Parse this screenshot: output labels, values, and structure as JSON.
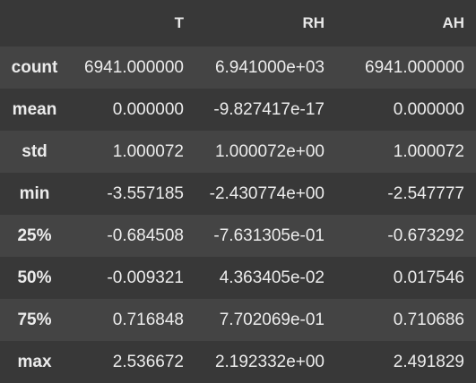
{
  "table": {
    "columns": [
      "",
      "T",
      "RH",
      "AH"
    ],
    "rows": [
      {
        "label": "count",
        "values": [
          "6941.000000",
          "6.941000e+03",
          "6941.000000"
        ]
      },
      {
        "label": "mean",
        "values": [
          "0.000000",
          "-9.827417e-17",
          "0.000000"
        ]
      },
      {
        "label": "std",
        "values": [
          "1.000072",
          "1.000072e+00",
          "1.000072"
        ]
      },
      {
        "label": "min",
        "values": [
          "-3.557185",
          "-2.430774e+00",
          "-2.547777"
        ]
      },
      {
        "label": "25%",
        "values": [
          "-0.684508",
          "-7.631305e-01",
          "-0.673292"
        ]
      },
      {
        "label": "50%",
        "values": [
          "-0.009321",
          "4.363405e-02",
          "0.017546"
        ]
      },
      {
        "label": "75%",
        "values": [
          "0.716848",
          "7.702069e-01",
          "0.710686"
        ]
      },
      {
        "label": "max",
        "values": [
          "2.536672",
          "2.192332e+00",
          "2.491829"
        ]
      }
    ]
  }
}
